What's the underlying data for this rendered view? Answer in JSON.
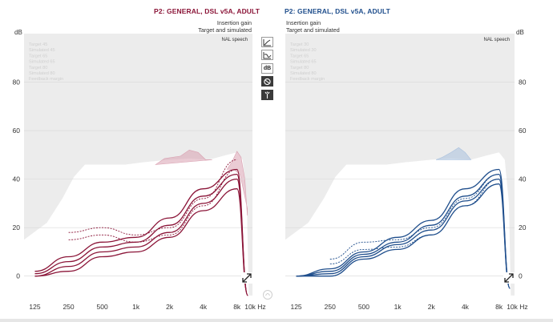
{
  "left_panel": {
    "title": "P2: GENERAL, DSL v5A, ADULT",
    "subtitle_1": "Insertion gain",
    "subtitle_2": "Target and simulated",
    "unit": "dB",
    "speech_label": "NAL speech",
    "legend": [
      "Target 45",
      "Simulated 45",
      "Target 65",
      "Simulated 65",
      "Target 80",
      "Simulated 80",
      "Feedback margin"
    ],
    "accent_color": "#8b1538",
    "y_ticks": [
      "80",
      "60",
      "40",
      "20",
      "0"
    ],
    "x_ticks": [
      "125",
      "250",
      "500",
      "1k",
      "2k",
      "4k",
      "8k",
      "10k Hz"
    ]
  },
  "right_panel": {
    "title": "P2: GENERAL, DSL v5A, ADULT",
    "subtitle_1": "Insertion gain",
    "subtitle_2": "Target and simulated",
    "unit": "dB",
    "speech_label": "NAL speech",
    "legend": [
      "Target 30",
      "Simulated 30",
      "Target 65",
      "Simulated 65",
      "Target 80",
      "Simulated 80",
      "Feedback margin"
    ],
    "accent_color": "#1f4e8c",
    "y_ticks": [
      "80",
      "60",
      "40",
      "20",
      "0"
    ],
    "x_ticks": [
      "125",
      "250",
      "500",
      "1k",
      "2k",
      "4k",
      "8k",
      "10k Hz"
    ]
  },
  "toolbar": {
    "icons": [
      "line-graph-icon",
      "curve-graph-icon",
      "db-icon",
      "target-icon",
      "sparkle-icon"
    ],
    "db_label": "dB"
  },
  "chart_data": [
    {
      "type": "line",
      "xlabel": "Hz",
      "ylabel": "dB",
      "x": [
        125,
        250,
        500,
        1000,
        2000,
        4000,
        8000,
        10000
      ],
      "ylim": [
        -10,
        100
      ],
      "series": [
        {
          "values": [
            2,
            8,
            14,
            16,
            24,
            36,
            44,
            -8
          ]
        },
        {
          "values": [
            1,
            6,
            12,
            14,
            21,
            33,
            42,
            -8
          ]
        },
        {
          "values": [
            0,
            4,
            10,
            12,
            18,
            30,
            40,
            -8
          ]
        },
        {
          "values": [
            0,
            2,
            8,
            10,
            16,
            27,
            36,
            -8
          ]
        },
        {
          "values": [
            null,
            18,
            20,
            17,
            20,
            32,
            48,
            null
          ]
        },
        {
          "values": [
            null,
            15,
            17,
            14,
            17,
            29,
            44,
            null
          ]
        }
      ]
    },
    {
      "type": "line",
      "xlabel": "Hz",
      "ylabel": "dB",
      "x": [
        125,
        250,
        500,
        1000,
        2000,
        4000,
        8000,
        10000
      ],
      "ylim": [
        -10,
        100
      ],
      "series": [
        {
          "values": [
            0,
            3,
            10,
            16,
            23,
            36,
            44,
            -5
          ]
        },
        {
          "values": [
            0,
            2,
            9,
            14,
            21,
            33,
            42,
            -5
          ]
        },
        {
          "values": [
            0,
            1,
            8,
            13,
            19,
            31,
            40,
            -5
          ]
        },
        {
          "values": [
            0,
            0,
            7,
            11,
            17,
            29,
            38,
            -5
          ]
        },
        {
          "values": [
            null,
            7,
            14,
            15,
            20,
            32,
            42,
            null
          ]
        },
        {
          "values": [
            null,
            5,
            11,
            12,
            17,
            29,
            40,
            null
          ]
        }
      ]
    }
  ]
}
